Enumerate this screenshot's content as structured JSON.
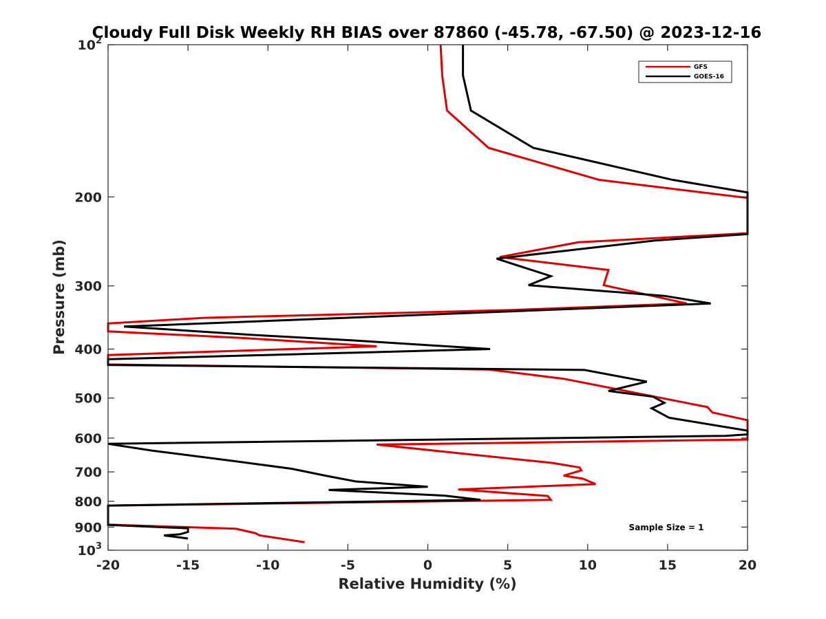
{
  "chart_data": {
    "type": "line",
    "title": "Cloudy Full Disk Weekly RH BIAS over 87860 (-45.78, -67.50) @ 2023-12-16",
    "xlabel": "Relative Humidity (%)",
    "ylabel": "Pressure (mb)",
    "xlim": [
      -20,
      20
    ],
    "ylim": [
      100,
      1000
    ],
    "y_scale": "log",
    "y_reversed": true,
    "grid": false,
    "x_ticks": [
      "-20",
      "-15",
      "-10",
      "-5",
      "0",
      "5",
      "10",
      "15",
      "20"
    ],
    "y_ticks": [
      {
        "value": 100,
        "base": "10",
        "exp": "2"
      },
      {
        "value": 200,
        "label": "200"
      },
      {
        "value": 300,
        "label": "300"
      },
      {
        "value": 400,
        "label": "400"
      },
      {
        "value": 500,
        "label": "500"
      },
      {
        "value": 600,
        "label": "600"
      },
      {
        "value": 700,
        "label": "700"
      },
      {
        "value": 800,
        "label": "800"
      },
      {
        "value": 900,
        "label": "900"
      },
      {
        "value": 1000,
        "base": "10",
        "exp": "3"
      }
    ],
    "legend_position": "top-right",
    "annotation": "Sample Size = 1",
    "series": [
      {
        "name": "GFS",
        "color": "#e00000",
        "points": [
          [
            0.8,
            100
          ],
          [
            0.9,
            115
          ],
          [
            1.2,
            135
          ],
          [
            3.8,
            160
          ],
          [
            10.7,
            185
          ],
          [
            20.0,
            201
          ],
          [
            20.0,
            236
          ],
          [
            9.4,
            246
          ],
          [
            4.5,
            263
          ],
          [
            11.3,
            279
          ],
          [
            11.0,
            299
          ],
          [
            16.2,
            325
          ],
          [
            5.0,
            335
          ],
          [
            -14.0,
            347
          ],
          [
            -20.0,
            356
          ],
          [
            -20.0,
            369
          ],
          [
            -11.8,
            380
          ],
          [
            -3.2,
            395
          ],
          [
            -20.0,
            411
          ],
          [
            -20.0,
            429
          ],
          [
            3.8,
            439
          ],
          [
            8.5,
            458
          ],
          [
            12.8,
            487
          ],
          [
            17.5,
            521
          ],
          [
            17.8,
            534
          ],
          [
            20.0,
            553
          ],
          [
            20.0,
            604
          ],
          [
            -3.2,
            618
          ],
          [
            7.8,
            672
          ],
          [
            9.5,
            686
          ],
          [
            9.6,
            695
          ],
          [
            8.5,
            712
          ],
          [
            9.7,
            722
          ],
          [
            10.5,
            740
          ],
          [
            1.9,
            758
          ],
          [
            7.5,
            781
          ],
          [
            7.7,
            795
          ],
          [
            -20.0,
            816
          ],
          [
            -20.0,
            890
          ],
          [
            -12.0,
            907
          ],
          [
            -10.8,
            925
          ],
          [
            -10.5,
            935
          ],
          [
            -7.7,
            964
          ]
        ]
      },
      {
        "name": "GOES-16",
        "color": "#000000",
        "points": [
          [
            2.2,
            100
          ],
          [
            2.2,
            115
          ],
          [
            2.7,
            135
          ],
          [
            6.6,
            160
          ],
          [
            15.3,
            185
          ],
          [
            20.0,
            196
          ],
          [
            20.0,
            237
          ],
          [
            14.2,
            244
          ],
          [
            4.3,
            265
          ],
          [
            7.7,
            287
          ],
          [
            6.3,
            299
          ],
          [
            14.8,
            314
          ],
          [
            17.7,
            325
          ],
          [
            -19.0,
            361
          ],
          [
            -11.0,
            375
          ],
          [
            -5.0,
            384
          ],
          [
            3.9,
            400
          ],
          [
            -20.0,
            419
          ],
          [
            -20.0,
            430
          ],
          [
            9.8,
            440
          ],
          [
            13.7,
            464
          ],
          [
            11.3,
            484
          ],
          [
            14.1,
            497
          ],
          [
            14.8,
            511
          ],
          [
            14.0,
            524
          ],
          [
            15.1,
            547
          ],
          [
            20.0,
            580
          ],
          [
            20.0,
            590
          ],
          [
            18.6,
            594
          ],
          [
            -20.0,
            616
          ],
          [
            -17.3,
            635
          ],
          [
            -12.0,
            667
          ],
          [
            -8.5,
            690
          ],
          [
            -6.4,
            712
          ],
          [
            -4.5,
            731
          ],
          [
            0.0,
            749
          ],
          [
            -6.2,
            760
          ],
          [
            1.1,
            780
          ],
          [
            3.3,
            795
          ],
          [
            -20.0,
            816
          ],
          [
            -20.0,
            891
          ],
          [
            -15.0,
            905
          ],
          [
            -15.0,
            920
          ],
          [
            -15.5,
            930
          ],
          [
            -16.5,
            935
          ],
          [
            -15.0,
            948
          ]
        ]
      }
    ]
  }
}
